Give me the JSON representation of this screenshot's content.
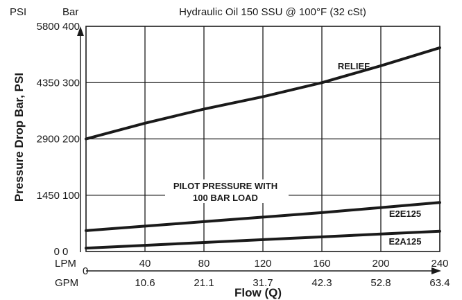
{
  "chart_data": {
    "type": "line",
    "title": "Hydraulic Oil 150 SSU @ 100°F (32 cSt)",
    "ylabel": "Pressure Drop Bar, PSI",
    "xlabel": "Flow (Q)",
    "y_units": {
      "left": "PSI",
      "right": "Bar"
    },
    "x_units": {
      "top": "LPM",
      "bottom": "GPM"
    },
    "xlim": [
      0,
      240
    ],
    "ylim": [
      0,
      400
    ],
    "grid": true,
    "x_ticks_lpm": [
      0,
      40,
      80,
      120,
      160,
      200,
      240
    ],
    "x_ticks_gpm": [
      "",
      "10.6",
      "21.1",
      "31.7",
      "42.3",
      "52.8",
      "63.4"
    ],
    "y_ticks_bar": [
      0,
      100,
      200,
      300,
      400
    ],
    "y_ticks_psi": [
      "0",
      "1450",
      "2900",
      "4350",
      "5800"
    ],
    "series": [
      {
        "name": "RELIEF",
        "x": [
          0,
          40,
          80,
          120,
          160,
          200,
          240
        ],
        "y": [
          200,
          228,
          253,
          275,
          300,
          330,
          362
        ]
      },
      {
        "name": "E2E125",
        "x": [
          0,
          40,
          80,
          120,
          160,
          200,
          240
        ],
        "y": [
          37,
          45,
          53,
          61,
          69,
          78,
          87
        ]
      },
      {
        "name": "E2A125",
        "x": [
          0,
          40,
          80,
          120,
          160,
          200,
          240
        ],
        "y": [
          6,
          11,
          16,
          21,
          26,
          31,
          36
        ]
      }
    ],
    "annotations": [
      {
        "text": "PILOT PRESSURE WITH"
      },
      {
        "text": "100 BAR LOAD"
      }
    ]
  }
}
